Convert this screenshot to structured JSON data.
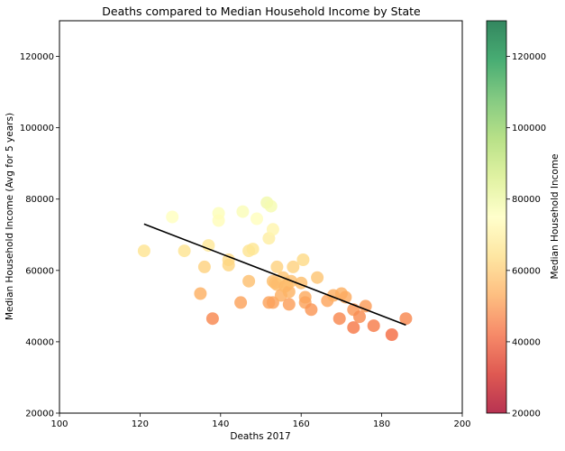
{
  "chart_data": {
    "type": "scatter",
    "title": "Deaths compared to Median Household Income by State",
    "xlabel": "Deaths 2017",
    "ylabel": "Median Household Income (Avg for 5 years)",
    "xlim": [
      100,
      200
    ],
    "ylim": [
      20000,
      130000
    ],
    "xticks": [
      "100",
      "120",
      "140",
      "160",
      "180",
      "200"
    ],
    "yticks": [
      "20000",
      "40000",
      "60000",
      "80000",
      "100000",
      "120000"
    ],
    "colorbar": {
      "label": "Median Household Income",
      "range": [
        20000,
        130000
      ],
      "ticks": [
        "20000",
        "40000",
        "60000",
        "80000",
        "100000",
        "120000"
      ],
      "colormap": "RdYlGn"
    },
    "grid": false,
    "series": [
      {
        "kind": "points",
        "x": [
          121,
          128,
          131,
          135,
          136,
          137,
          138,
          139.5,
          139.5,
          142,
          142,
          145,
          145.5,
          147,
          147,
          148,
          149,
          151.5,
          152,
          152,
          152.5,
          153,
          153,
          153,
          153.5,
          154,
          154,
          155,
          155.5,
          156,
          156.5,
          157,
          157,
          157.5,
          158,
          160,
          160.5,
          161,
          161,
          162.5,
          164,
          166.5,
          168,
          169.5,
          170,
          171,
          173,
          173,
          174.5,
          176,
          178,
          182.5,
          186
        ],
        "y": [
          65500,
          75000,
          65500,
          53500,
          61000,
          67000,
          46500,
          76000,
          74000,
          63000,
          61500,
          51000,
          76500,
          65500,
          57000,
          66000,
          74500,
          79000,
          51000,
          69000,
          78000,
          57000,
          71500,
          51000,
          56500,
          61000,
          56000,
          53000,
          58000,
          55500,
          56000,
          54000,
          50500,
          57000,
          61000,
          56500,
          63000,
          52500,
          51000,
          49000,
          58000,
          51500,
          53000,
          46500,
          53500,
          52500,
          49000,
          44000,
          47000,
          50000,
          44500,
          42000,
          46500
        ]
      },
      {
        "kind": "trendline",
        "x": [
          121,
          186
        ],
        "y": [
          73000,
          44700
        ]
      }
    ]
  }
}
